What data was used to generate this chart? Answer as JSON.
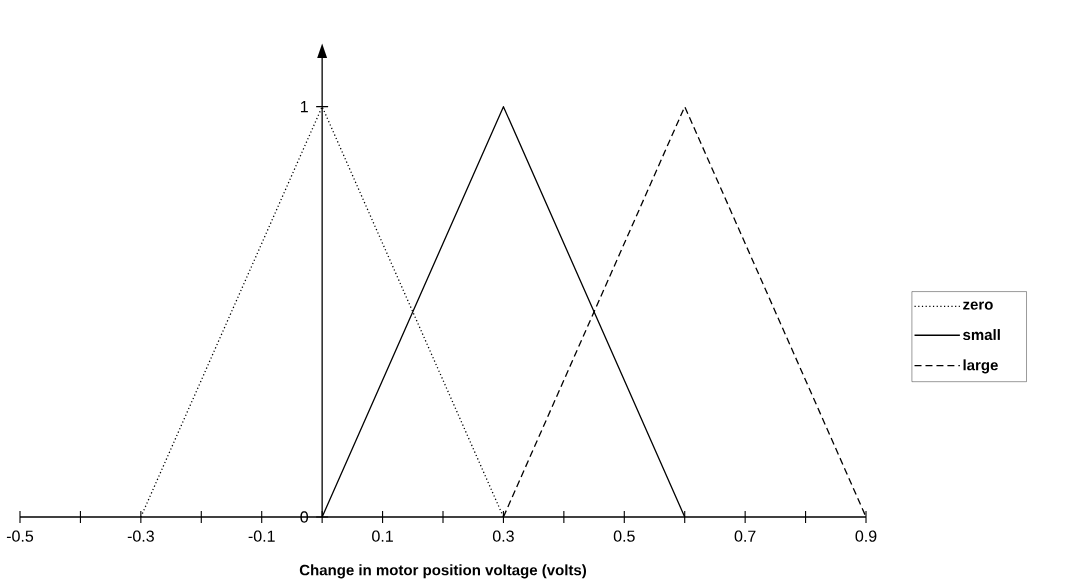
{
  "chart_data": {
    "type": "line",
    "xlabel": "Change in motor position voltage (volts)",
    "xlim": [
      -0.5,
      0.9
    ],
    "ylim": [
      0,
      1.12
    ],
    "xticks": [
      -0.5,
      {
        "value": -0.4,
        "label": null
      },
      -0.3,
      {
        "value": -0.2,
        "label": null
      },
      -0.1,
      {
        "value": 0,
        "label": null
      },
      0.1,
      {
        "value": 0.2,
        "label": null
      },
      0.3,
      {
        "value": 0.4,
        "label": null
      },
      0.5,
      {
        "value": 0.6,
        "label": null
      },
      0.7,
      {
        "value": 0.8,
        "label": null
      },
      0.9
    ],
    "yticks": [
      0,
      1
    ],
    "legend": "right",
    "series": [
      {
        "name": "zero",
        "color": "#000000",
        "line_style": "dotted",
        "x": [
          -0.3,
          0,
          0.3
        ],
        "values": [
          0,
          1,
          0
        ]
      },
      {
        "name": "small",
        "color": "#000000",
        "line_style": "solid",
        "x": [
          0,
          0.3,
          0.6
        ],
        "values": [
          0,
          1,
          0
        ]
      },
      {
        "name": "large",
        "color": "#000000",
        "line_style": "dashed",
        "x": [
          0.3,
          0.6,
          0.9
        ],
        "values": [
          0,
          1,
          0
        ]
      }
    ]
  }
}
